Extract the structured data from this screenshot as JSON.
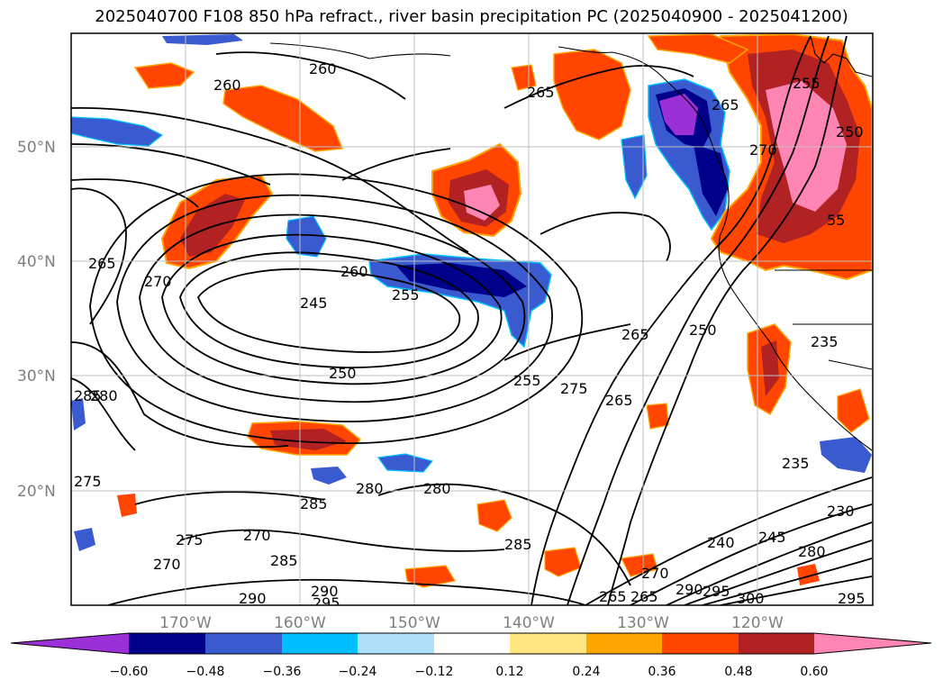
{
  "title": "2025040700 F108 850 hPa refract., river basin precipitation PC (2025040900 - 2025041200)",
  "latitude_labels": [
    "50°N",
    "40°N",
    "30°N",
    "20°N"
  ],
  "longitude_labels": [
    "170°W",
    "160°W",
    "150°W",
    "140°W",
    "130°W",
    "120°W"
  ],
  "contour_labels": [
    {
      "text": "260"
    },
    {
      "text": "260"
    },
    {
      "text": "265"
    },
    {
      "text": "265"
    },
    {
      "text": "255"
    },
    {
      "text": "250"
    },
    {
      "text": "270"
    },
    {
      "text": "265"
    },
    {
      "text": "270"
    },
    {
      "text": "260"
    },
    {
      "text": "255"
    },
    {
      "text": "245"
    },
    {
      "text": "250"
    },
    {
      "text": "255"
    },
    {
      "text": "275"
    },
    {
      "text": "265"
    },
    {
      "text": "265"
    },
    {
      "text": "250"
    },
    {
      "text": "285"
    },
    {
      "text": "280"
    },
    {
      "text": "275"
    },
    {
      "text": "285"
    },
    {
      "text": "280"
    },
    {
      "text": "280"
    },
    {
      "text": "285"
    },
    {
      "text": "275"
    },
    {
      "text": "270"
    },
    {
      "text": "270"
    },
    {
      "text": "285"
    },
    {
      "text": "290"
    },
    {
      "text": "290"
    },
    {
      "text": "295"
    },
    {
      "text": "235"
    },
    {
      "text": "230"
    },
    {
      "text": "240"
    },
    {
      "text": "245"
    },
    {
      "text": "280"
    },
    {
      "text": "265"
    },
    {
      "text": "270"
    },
    {
      "text": "265"
    },
    {
      "text": "290"
    },
    {
      "text": "295"
    },
    {
      "text": "300"
    },
    {
      "text": "295"
    },
    {
      "text": "55"
    },
    {
      "text": "235"
    }
  ],
  "colorbar": {
    "ticks": [
      "−0.60",
      "−0.48",
      "−0.36",
      "−0.24",
      "−0.12",
      "0.12",
      "0.24",
      "0.36",
      "0.48",
      "0.60"
    ],
    "colors": [
      "#9b30d6",
      "#00008b",
      "#3a5bd0",
      "#00bfff",
      "#aee0fa",
      "#ffffff",
      "#ffe680",
      "#ffa500",
      "#ff4500",
      "#b22222",
      "#ff85b5"
    ]
  }
}
